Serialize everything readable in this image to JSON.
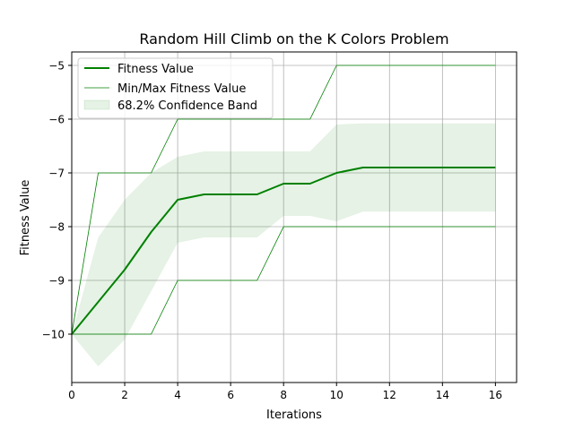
{
  "chart_data": {
    "type": "line",
    "title": "Random Hill Climb on the K Colors Problem",
    "xlabel": "Iterations",
    "ylabel": "Fitness Value",
    "xlim": [
      0,
      16.8
    ],
    "ylim": [
      -10.9,
      -4.75
    ],
    "x_ticks": [
      0,
      2,
      4,
      6,
      8,
      10,
      12,
      14,
      16
    ],
    "x_tick_labels": [
      "0",
      "2",
      "4",
      "6",
      "8",
      "10",
      "12",
      "14",
      "16"
    ],
    "y_ticks": [
      -10,
      -9,
      -8,
      -7,
      -6,
      -5
    ],
    "y_tick_labels": [
      "−10",
      "−9",
      "−8",
      "−7",
      "−6",
      "−5"
    ],
    "grid": true,
    "legend_position": "top-left",
    "colors": {
      "line": "#008000",
      "band": "#008000"
    },
    "x": [
      0,
      1,
      2,
      3,
      4,
      5,
      6,
      7,
      8,
      9,
      10,
      11,
      12,
      13,
      14,
      15,
      16
    ],
    "series": [
      {
        "name": "Fitness Value",
        "role": "mean",
        "values": [
          -10,
          -9.4,
          -8.8,
          -8.1,
          -7.5,
          -7.4,
          -7.4,
          -7.4,
          -7.2,
          -7.2,
          -7.0,
          -6.9,
          -6.9,
          -6.9,
          -6.9,
          -6.9,
          -6.9
        ]
      },
      {
        "name": "Min/Max Fitness Value",
        "role": "max",
        "values": [
          -10,
          -7,
          -7,
          -7,
          -6,
          -6,
          -6,
          -6,
          -6,
          -6,
          -5,
          -5,
          -5,
          -5,
          -5,
          -5,
          -5
        ]
      },
      {
        "name": "",
        "role": "min",
        "values": [
          -10,
          -10,
          -10,
          -10,
          -9,
          -9,
          -9,
          -9,
          -8,
          -8,
          -8,
          -8,
          -8,
          -8,
          -8,
          -8,
          -8
        ]
      },
      {
        "name": "68.2% Confidence Band",
        "role": "band",
        "upper": [
          -10,
          -8.2,
          -7.5,
          -7.0,
          -6.7,
          -6.6,
          -6.6,
          -6.6,
          -6.6,
          -6.6,
          -6.1,
          -6.08,
          -6.08,
          -6.08,
          -6.08,
          -6.08,
          -6.08
        ],
        "lower": [
          -10,
          -10.6,
          -10.1,
          -9.2,
          -8.3,
          -8.2,
          -8.2,
          -8.2,
          -7.8,
          -7.8,
          -7.9,
          -7.72,
          -7.72,
          -7.72,
          -7.72,
          -7.72,
          -7.72
        ]
      }
    ]
  }
}
